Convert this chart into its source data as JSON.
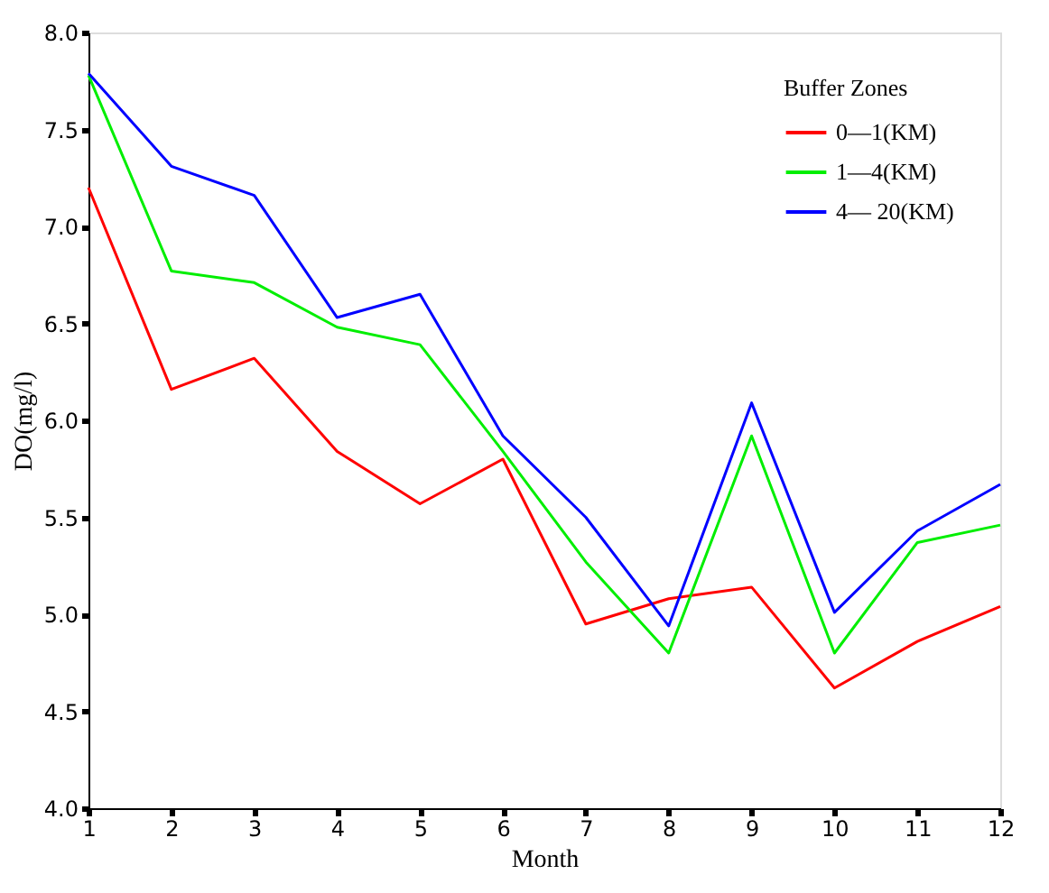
{
  "chart_data": {
    "type": "line",
    "xlabel": "Month",
    "ylabel": "DO(mg/l)",
    "legend_title": "Buffer Zones",
    "legend": "top right",
    "grid": false,
    "marker": "none",
    "line_style": "solid",
    "x": [
      1,
      2,
      3,
      4,
      5,
      6,
      7,
      8,
      9,
      10,
      11,
      12
    ],
    "xlim": [
      1,
      12
    ],
    "xticks": [
      1,
      2,
      3,
      4,
      5,
      6,
      7,
      8,
      9,
      10,
      11,
      12
    ],
    "ylim": [
      4.0,
      8.0
    ],
    "yticks": [
      {
        "value": 4.0,
        "label": "4.0"
      },
      {
        "value": 4.5,
        "label": "4.5"
      },
      {
        "value": 5.0,
        "label": "5.0"
      },
      {
        "value": 5.5,
        "label": "5.5"
      },
      {
        "value": 6.0,
        "label": "6.0"
      },
      {
        "value": 6.5,
        "label": "6.5"
      },
      {
        "value": 7.0,
        "label": "7.0"
      },
      {
        "value": 7.5,
        "label": "7.5"
      },
      {
        "value": 8.0,
        "label": "8.0"
      }
    ],
    "series": [
      {
        "name": "0—1(KM)",
        "color": "#ff0000",
        "values": [
          7.2,
          6.16,
          6.32,
          5.84,
          5.57,
          5.8,
          4.95,
          5.08,
          5.14,
          4.62,
          4.86,
          5.04
        ]
      },
      {
        "name": "1—4(KM)",
        "color": "#00ee00",
        "values": [
          7.78,
          6.77,
          6.71,
          6.48,
          6.39,
          5.84,
          5.27,
          4.8,
          5.92,
          4.8,
          5.37,
          5.46
        ]
      },
      {
        "name": "4— 20(KM)",
        "color": "#0000ff",
        "values": [
          7.79,
          7.31,
          7.16,
          6.53,
          6.65,
          5.92,
          5.5,
          4.94,
          6.09,
          5.01,
          5.43,
          5.67
        ]
      }
    ]
  }
}
